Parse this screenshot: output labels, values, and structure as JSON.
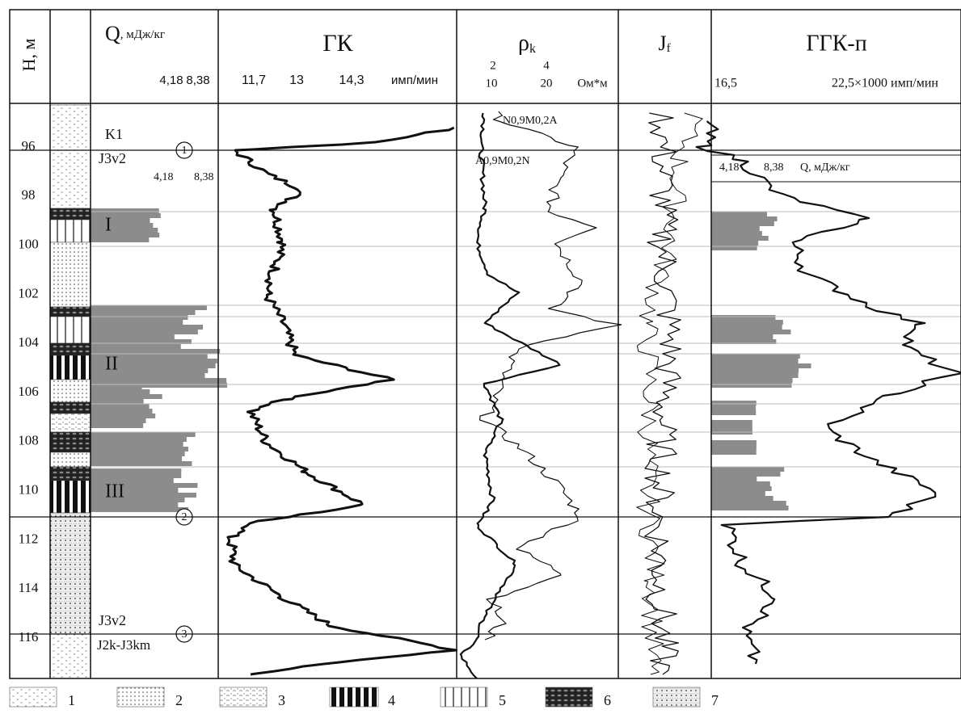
{
  "header": {
    "depth": "Н, м",
    "q": "Q",
    "q_unit": ", мДж/кг",
    "q_ticks": [
      "4,18",
      "8,38"
    ],
    "gk": "ГК",
    "gk_ticks": [
      "11,7",
      "13",
      "14,3"
    ],
    "gk_unit": "имп/мин",
    "rho": "ρ",
    "rho_sub": "k",
    "rho_ticks_top": [
      "2",
      "4"
    ],
    "rho_ticks": [
      "10",
      "20"
    ],
    "rho_unit": "Ом*м",
    "jf": "J",
    "jf_sub": "f",
    "ggk": "ГГК-п",
    "ggk_ticks": [
      "16,5",
      "22,5×1000 имп/мин"
    ]
  },
  "depths": [
    "96",
    "98",
    "100",
    "102",
    "104",
    "106",
    "108",
    "110",
    "112",
    "114",
    "116"
  ],
  "annotations": {
    "k1": "K1",
    "j3v2_top": "J3v2",
    "j3v2_bottom": "J3v2",
    "j2k": "J2k-J3km",
    "marker_1": "1",
    "marker_2": "2",
    "marker_3": "3",
    "layer_1": "I",
    "layer_2": "II",
    "layer_3": "III",
    "q_ticks_inner": [
      "4,18",
      "8,38"
    ],
    "probe_top": "N0,9M0,2A",
    "probe_bottom": "A0,9M0,2N",
    "ggk_q_ticks": [
      "4,18",
      "8,38"
    ],
    "ggk_q_label": "Q, мДж/кг"
  },
  "legend": [
    "1",
    "2",
    "3",
    "4",
    "5",
    "6",
    "7"
  ]
}
